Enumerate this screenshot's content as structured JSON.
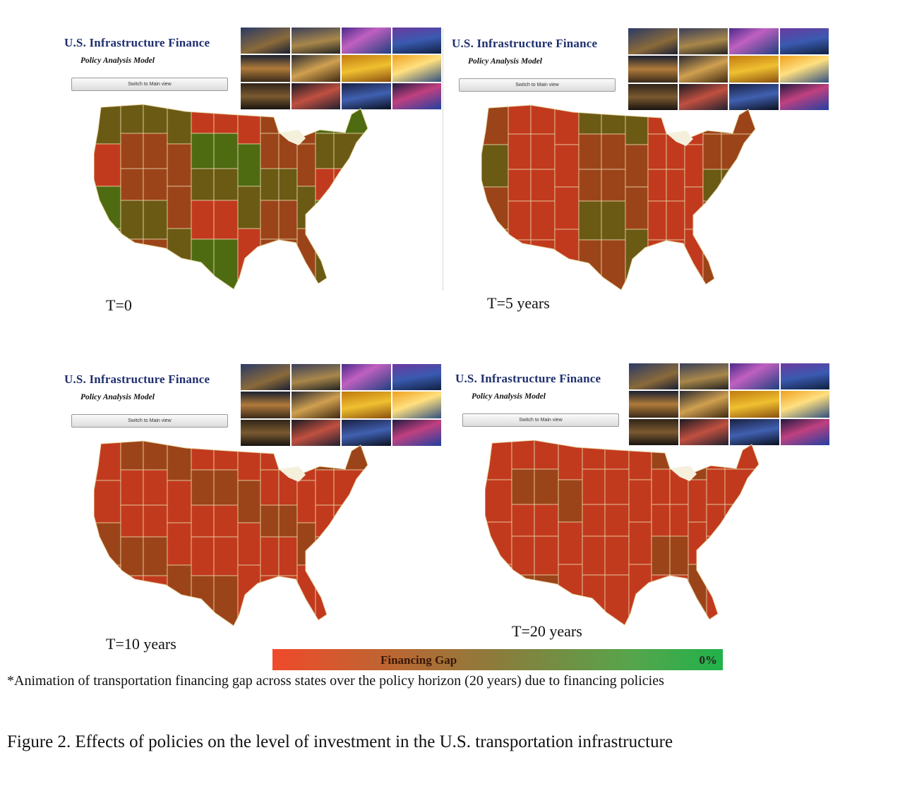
{
  "app": {
    "title": "U.S. Infrastructure Finance",
    "subtitle": "Policy Analysis Model",
    "switch_button": "Switch to Main view"
  },
  "panels": [
    {
      "time_label": "T=0",
      "map_state": "mixed gap: many states olive/green"
    },
    {
      "time_label": "T=5 years",
      "map_state": "mostly red-brown"
    },
    {
      "time_label": "T=10 years",
      "map_state": "mostly red"
    },
    {
      "time_label": "T=20 years",
      "map_state": "mostly red"
    }
  ],
  "legend": {
    "label": "Financing Gap",
    "end_label": "0%",
    "colors": {
      "start": "#f04a2a",
      "mid": "#8b7c3c",
      "end": "#20b24a"
    }
  },
  "note": "*Animation of transportation financing gap across states over the policy horizon (20 years) due to financing policies",
  "caption": "Figure 2. Effects of policies on the level of investment in the U.S. transportation infrastructure",
  "colors": {
    "title": "#1f2f6e",
    "state_red": "#c23a1e",
    "state_brown": "#9c4419",
    "state_olive": "#6b5a14",
    "state_green": "#4e6b12",
    "lake": "#f5f0dc"
  }
}
